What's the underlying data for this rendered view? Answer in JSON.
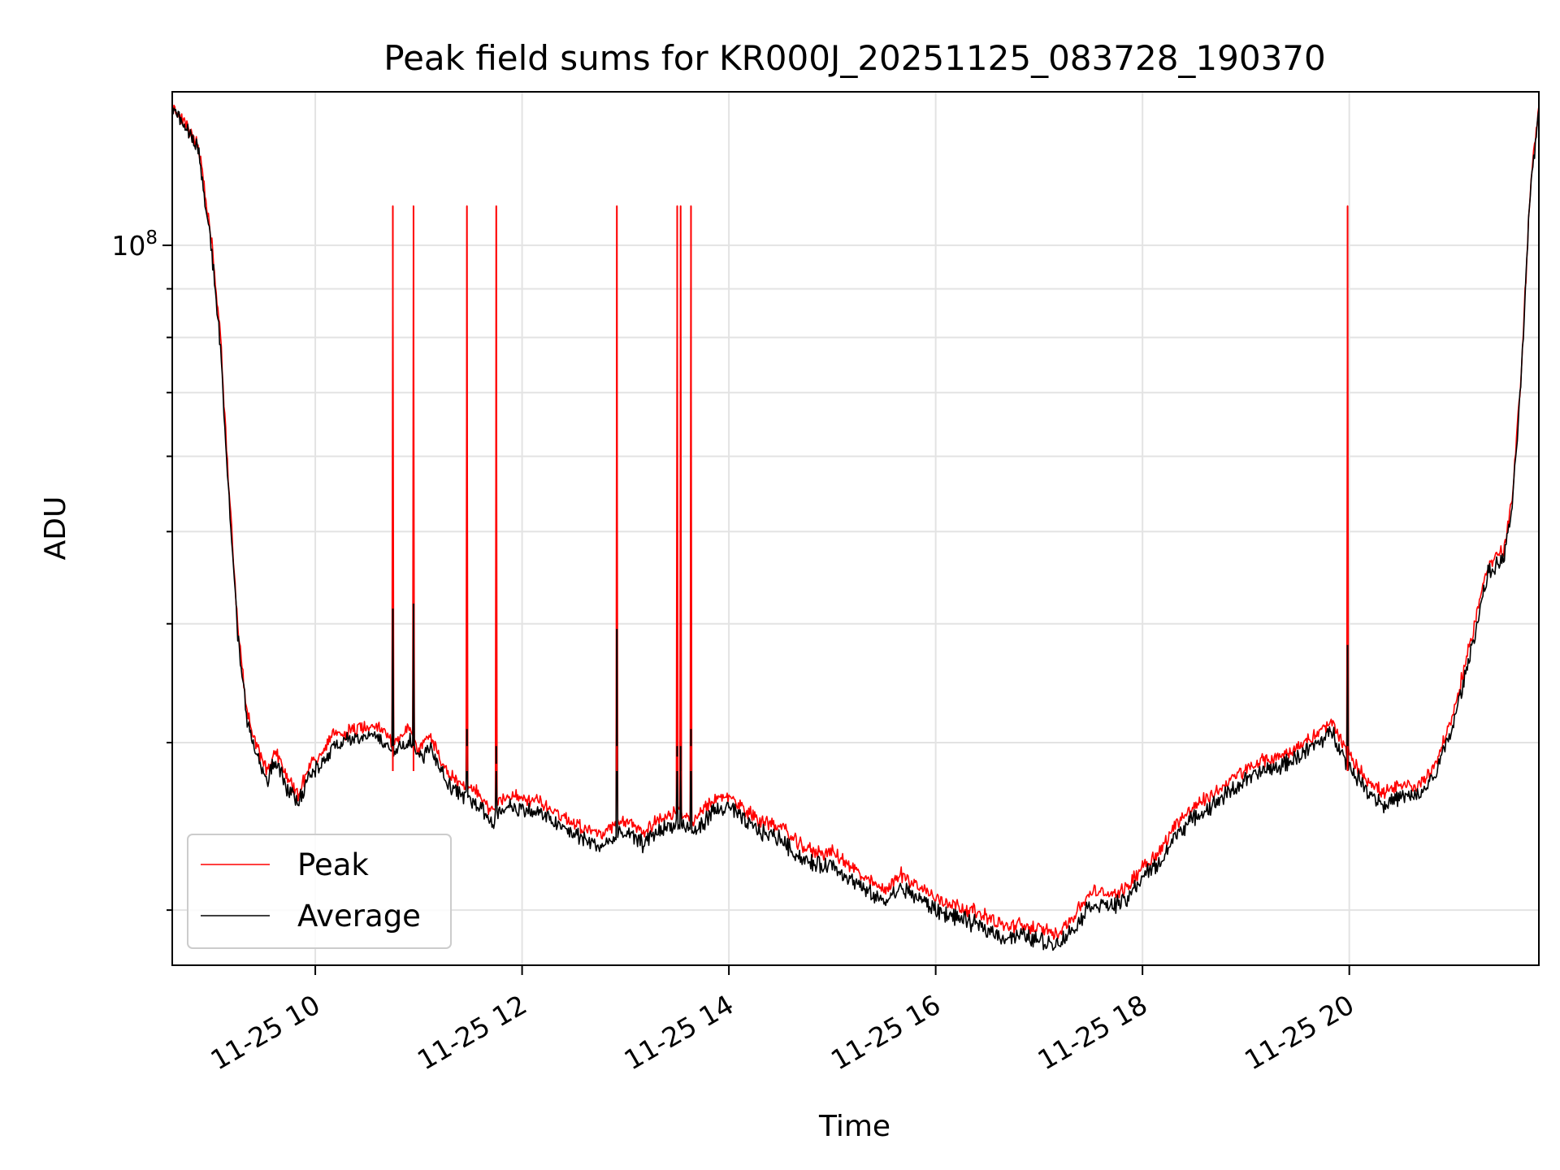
{
  "chart_data": {
    "type": "line",
    "title": "Peak field sums for KR000J_20251125_083728_190370",
    "xlabel": "Time",
    "ylabel": "ADU",
    "yscale": "log",
    "grid": true,
    "legend_position": "lower-left",
    "x_ticks": [
      "11-25 10",
      "11-25 12",
      "11-25 14",
      "11-25 16",
      "11-25 18",
      "11-25 20"
    ],
    "y_tick_label": "10^8",
    "xlim": [
      "2025-11-25 08:37",
      "2025-11-25 21:50"
    ],
    "ylim": [
      17500000,
      145000000
    ],
    "series": [
      {
        "name": "Peak",
        "color": "#ff0000",
        "points": [
          [
            "08:37",
            140000000
          ],
          [
            "08:52",
            128000000
          ],
          [
            "09:00",
            100000000
          ],
          [
            "09:05",
            80000000
          ],
          [
            "09:10",
            55000000
          ],
          [
            "09:15",
            40000000
          ],
          [
            "09:20",
            32500000
          ],
          [
            "09:25",
            30000000
          ],
          [
            "09:32",
            28000000
          ],
          [
            "09:37",
            29500000
          ],
          [
            "09:44",
            27500000
          ],
          [
            "09:50",
            26500000
          ],
          [
            "09:57",
            28500000
          ],
          [
            "10:03",
            29000000
          ],
          [
            "10:10",
            30500000
          ],
          [
            "10:25",
            31000000
          ],
          [
            "10:35",
            31500000
          ],
          [
            "10:45",
            30000000
          ],
          [
            "10:55",
            31000000
          ],
          [
            "11:00",
            29500000
          ],
          [
            "11:07",
            30500000
          ],
          [
            "11:12",
            29000000
          ],
          [
            "11:16",
            28000000
          ],
          [
            "11:25",
            27000000
          ],
          [
            "11:35",
            26500000
          ],
          [
            "11:42",
            25500000
          ],
          [
            "11:52",
            26500000
          ],
          [
            "12:00",
            26200000
          ],
          [
            "12:10",
            26000000
          ],
          [
            "12:25",
            25000000
          ],
          [
            "12:35",
            24500000
          ],
          [
            "12:45",
            24000000
          ],
          [
            "13:00",
            24800000
          ],
          [
            "13:10",
            24200000
          ],
          [
            "13:20",
            25000000
          ],
          [
            "13:30",
            25300000
          ],
          [
            "13:40",
            24800000
          ],
          [
            "13:50",
            26000000
          ],
          [
            "14:00",
            26400000
          ],
          [
            "14:10",
            25400000
          ],
          [
            "14:20",
            24800000
          ],
          [
            "14:30",
            24500000
          ],
          [
            "14:40",
            23500000
          ],
          [
            "14:50",
            23000000
          ],
          [
            "15:00",
            23000000
          ],
          [
            "15:10",
            22300000
          ],
          [
            "15:20",
            21500000
          ],
          [
            "15:30",
            21000000
          ],
          [
            "15:40",
            21800000
          ],
          [
            "15:50",
            21200000
          ],
          [
            "16:00",
            20600000
          ],
          [
            "16:10",
            20300000
          ],
          [
            "16:20",
            20000000
          ],
          [
            "16:30",
            19700000
          ],
          [
            "16:40",
            19200000
          ],
          [
            "16:50",
            19300000
          ],
          [
            "17:00",
            19100000
          ],
          [
            "17:10",
            18900000
          ],
          [
            "17:20",
            19700000
          ],
          [
            "17:30",
            20900000
          ],
          [
            "17:40",
            20800000
          ],
          [
            "17:50",
            21000000
          ],
          [
            "18:00",
            22300000
          ],
          [
            "18:10",
            23000000
          ],
          [
            "18:20",
            24800000
          ],
          [
            "18:30",
            25700000
          ],
          [
            "18:40",
            26400000
          ],
          [
            "18:50",
            27300000
          ],
          [
            "19:00",
            28100000
          ],
          [
            "19:10",
            28700000
          ],
          [
            "19:20",
            29000000
          ],
          [
            "19:30",
            29700000
          ],
          [
            "19:40",
            30500000
          ],
          [
            "19:50",
            31500000
          ],
          [
            "20:00",
            29000000
          ],
          [
            "20:10",
            27500000
          ],
          [
            "20:20",
            26500000
          ],
          [
            "20:30",
            27000000
          ],
          [
            "20:40",
            27000000
          ],
          [
            "20:50",
            28500000
          ],
          [
            "21:00",
            32000000
          ],
          [
            "21:10",
            38000000
          ],
          [
            "21:20",
            46000000
          ],
          [
            "21:30",
            48000000
          ],
          [
            "21:35",
            55000000
          ],
          [
            "21:40",
            75000000
          ],
          [
            "21:45",
            115000000
          ],
          [
            "21:50",
            140000000
          ]
        ]
      },
      {
        "name": "Average",
        "color": "#000000",
        "points": [
          [
            "08:37",
            140000000
          ],
          [
            "08:52",
            127000000
          ],
          [
            "09:00",
            98000000
          ],
          [
            "09:05",
            78000000
          ],
          [
            "09:10",
            54000000
          ],
          [
            "09:15",
            39000000
          ],
          [
            "09:20",
            32000000
          ],
          [
            "09:25",
            29500000
          ],
          [
            "09:32",
            27300000
          ],
          [
            "09:37",
            28800000
          ],
          [
            "09:44",
            26800000
          ],
          [
            "09:50",
            25900000
          ],
          [
            "09:57",
            27800000
          ],
          [
            "10:03",
            28300000
          ],
          [
            "10:10",
            29800000
          ],
          [
            "10:25",
            30300000
          ],
          [
            "10:35",
            30700000
          ],
          [
            "10:45",
            29300000
          ],
          [
            "10:55",
            30300000
          ],
          [
            "11:00",
            28800000
          ],
          [
            "11:07",
            29800000
          ],
          [
            "11:12",
            28300000
          ],
          [
            "11:16",
            27300000
          ],
          [
            "11:25",
            26300000
          ],
          [
            "11:35",
            25800000
          ],
          [
            "11:42",
            24800000
          ],
          [
            "11:52",
            25800000
          ],
          [
            "12:00",
            25500000
          ],
          [
            "12:10",
            25300000
          ],
          [
            "12:25",
            24300000
          ],
          [
            "12:35",
            23800000
          ],
          [
            "12:45",
            23300000
          ],
          [
            "13:00",
            24100000
          ],
          [
            "13:10",
            23500000
          ],
          [
            "13:20",
            24300000
          ],
          [
            "13:30",
            24600000
          ],
          [
            "13:40",
            24100000
          ],
          [
            "13:50",
            25300000
          ],
          [
            "14:00",
            25700000
          ],
          [
            "14:10",
            24700000
          ],
          [
            "14:20",
            24100000
          ],
          [
            "14:30",
            23800000
          ],
          [
            "14:40",
            22800000
          ],
          [
            "14:50",
            22300000
          ],
          [
            "15:00",
            22300000
          ],
          [
            "15:10",
            21600000
          ],
          [
            "15:20",
            20900000
          ],
          [
            "15:30",
            20400000
          ],
          [
            "15:40",
            21100000
          ],
          [
            "15:50",
            20600000
          ],
          [
            "16:00",
            20000000
          ],
          [
            "16:10",
            19700000
          ],
          [
            "16:20",
            19400000
          ],
          [
            "16:30",
            19100000
          ],
          [
            "16:40",
            18700000
          ],
          [
            "16:50",
            18800000
          ],
          [
            "17:00",
            18600000
          ],
          [
            "17:10",
            18400000
          ],
          [
            "17:20",
            19100000
          ],
          [
            "17:30",
            20300000
          ],
          [
            "17:40",
            20200000
          ],
          [
            "17:50",
            20400000
          ],
          [
            "18:00",
            21700000
          ],
          [
            "18:10",
            22400000
          ],
          [
            "18:20",
            24100000
          ],
          [
            "18:30",
            25000000
          ],
          [
            "18:40",
            25700000
          ],
          [
            "18:50",
            26600000
          ],
          [
            "19:00",
            27400000
          ],
          [
            "19:10",
            28000000
          ],
          [
            "19:20",
            28300000
          ],
          [
            "19:30",
            29000000
          ],
          [
            "19:40",
            29800000
          ],
          [
            "19:50",
            30800000
          ],
          [
            "20:00",
            28300000
          ],
          [
            "20:10",
            26800000
          ],
          [
            "20:20",
            25800000
          ],
          [
            "20:30",
            26300000
          ],
          [
            "20:40",
            26300000
          ],
          [
            "20:50",
            27800000
          ],
          [
            "21:00",
            31200000
          ],
          [
            "21:10",
            37000000
          ],
          [
            "21:20",
            45000000
          ],
          [
            "21:30",
            47000000
          ],
          [
            "21:35",
            54000000
          ],
          [
            "21:40",
            74000000
          ],
          [
            "21:45",
            114000000
          ],
          [
            "21:50",
            139000000
          ]
        ]
      }
    ],
    "spikes": [
      {
        "time": "10:45",
        "peak": 110000000,
        "average": 41500000
      },
      {
        "time": "10:57",
        "peak": 110000000,
        "average": 42000000
      },
      {
        "time": "11:28",
        "peak": 110000000,
        "average": 31000000
      },
      {
        "time": "11:45",
        "peak": 110000000,
        "average": 28500000
      },
      {
        "time": "12:55",
        "peak": 110000000,
        "average": 39500000
      },
      {
        "time": "13:30",
        "peak": 110000000,
        "average": 29000000
      },
      {
        "time": "13:32",
        "peak": 110000000,
        "average": 28000000
      },
      {
        "time": "13:38",
        "peak": 110000000,
        "average": 31000000
      },
      {
        "time": "19:59",
        "peak": 110000000,
        "average": 38000000
      }
    ]
  }
}
